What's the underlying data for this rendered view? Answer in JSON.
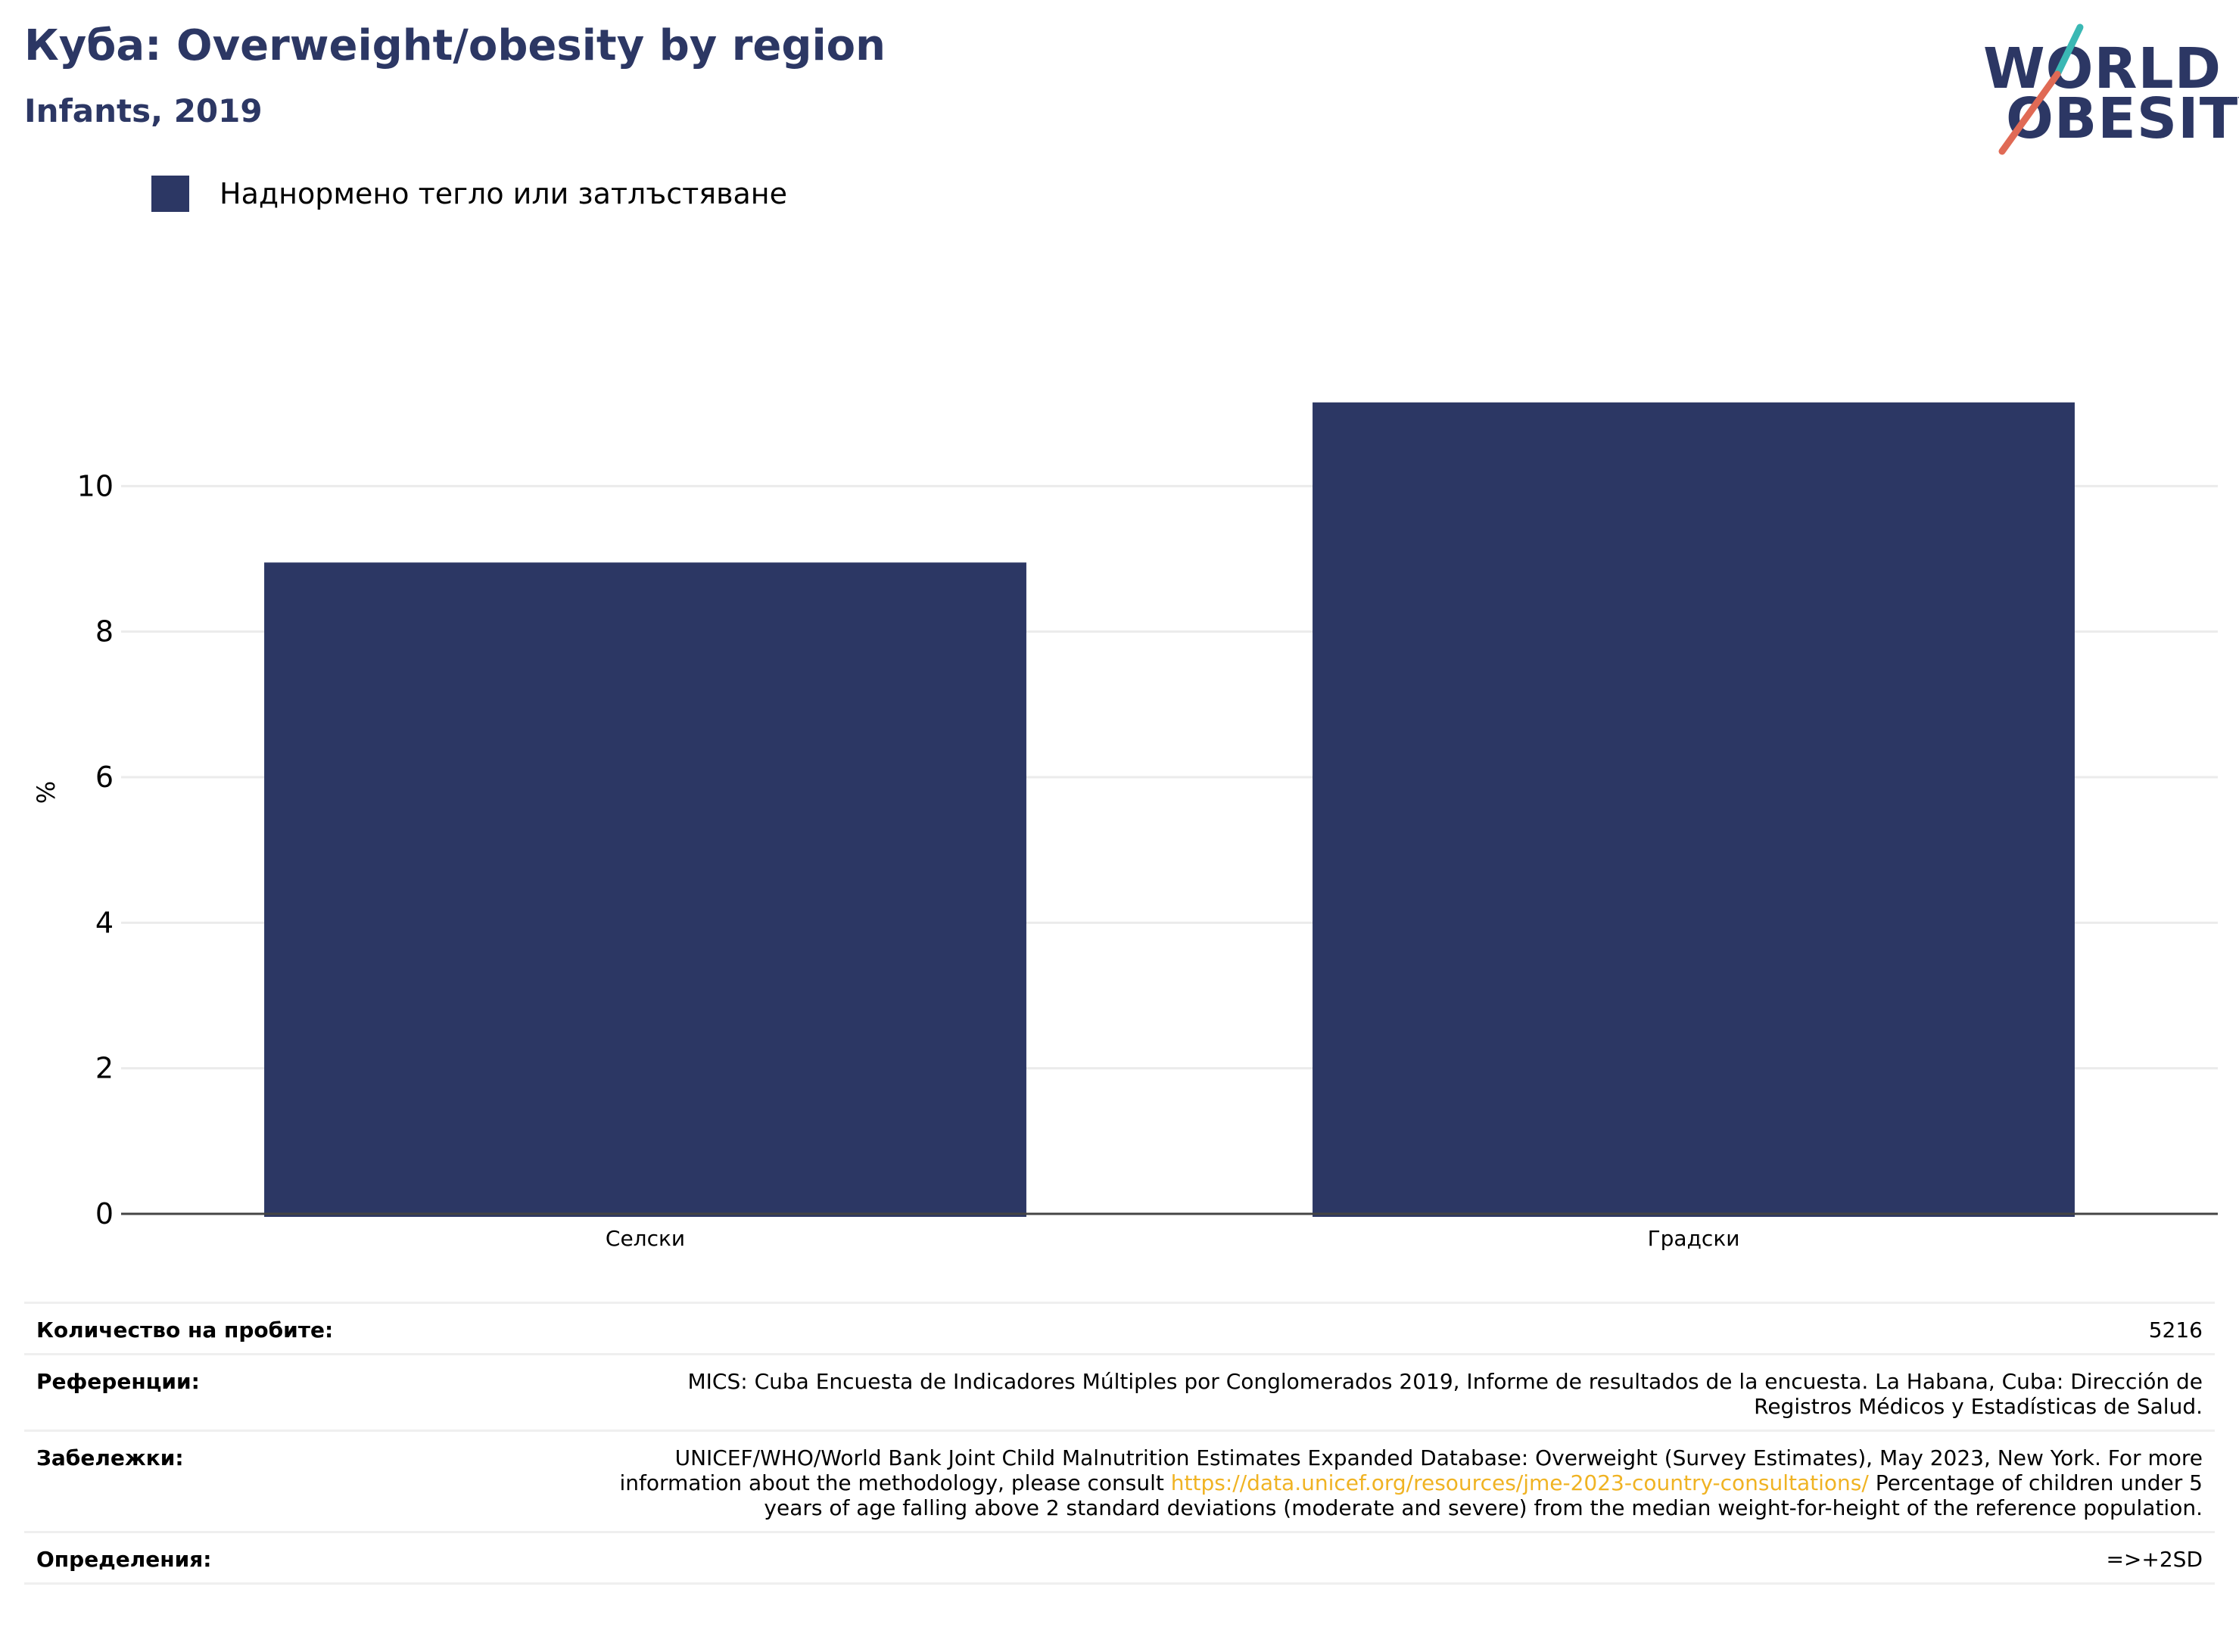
{
  "header": {
    "title": "Куба: Overweight/obesity by region",
    "subtitle": "Infants, 2019"
  },
  "logo": {
    "line1": "WORLD",
    "line2": "OBESITY",
    "colors": {
      "text": "#2c3764",
      "slash_teal": "#3ab8b4",
      "slash_red": "#e06a55"
    }
  },
  "chart_data": {
    "type": "bar",
    "categories": [
      "Селски",
      "Градски"
    ],
    "series": [
      {
        "name": "Наднормено тегло или затлъстяване",
        "values": [
          8.95,
          11.15
        ],
        "color": "#2c3764"
      }
    ],
    "title": "Куба: Overweight/obesity by region",
    "subtitle": "Infants, 2019",
    "xlabel": "",
    "ylabel": "%",
    "ylim": [
      0,
      12
    ],
    "yticks": [
      0,
      2,
      4,
      6,
      8,
      10
    ],
    "grid": true,
    "legend_position": "top-left"
  },
  "info": {
    "sample_label": "Количество на пробите:",
    "sample_value": "5216",
    "references_label": "Референции:",
    "references_value": "MICS: Cuba Encuesta de Indicadores Múltiples por Conglomerados 2019, Informe de resultados de la encuesta. La Habana, Cuba: Dirección de Registros Médicos y Estadísticas de Salud.",
    "notes_label": "Забележки:",
    "notes_before": "UNICEF/WHO/World Bank Joint Child Malnutrition Estimates Expanded Database: Overweight (Survey Estimates), May 2023, New York. For more information about the methodology, please consult ",
    "notes_link": "https://data.unicef.org/resources/jme-2023-country-consultations/",
    "notes_after": " Percentage of children under 5 years of age falling above 2 standard deviations (moderate and severe) from the median weight-for-height of the reference population.",
    "definitions_label": "Определения:",
    "definitions_value": "=>+2SD"
  }
}
